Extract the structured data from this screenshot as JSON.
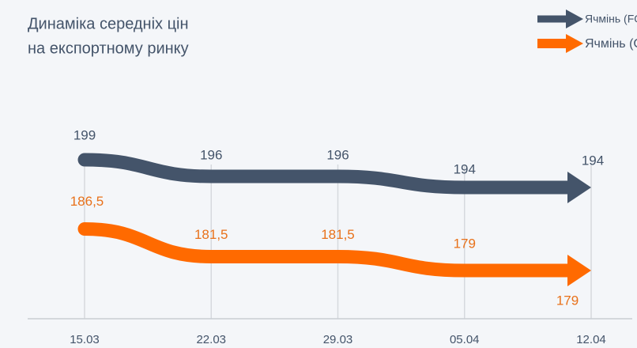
{
  "chart_data": {
    "type": "line",
    "title": [
      "Динаміка середніх цін",
      "на експортному ринку"
    ],
    "categories": [
      "15.03",
      "22.03",
      "29.03",
      "05.04",
      "12.04"
    ],
    "series": [
      {
        "name": "Ячмінь (FOB, попит)",
        "color": "#44546a",
        "values": [
          199,
          196,
          196,
          194,
          194
        ]
      },
      {
        "name": "Ячмінь (CPT, попит)",
        "color": "#ff6a00",
        "values": [
          186.5,
          181.5,
          181.5,
          179,
          179
        ],
        "value_labels": [
          "186,5",
          "181,5",
          "181,5",
          "179",
          "179"
        ]
      }
    ],
    "ylim": [
      170,
      205
    ],
    "legend": "top-right"
  }
}
